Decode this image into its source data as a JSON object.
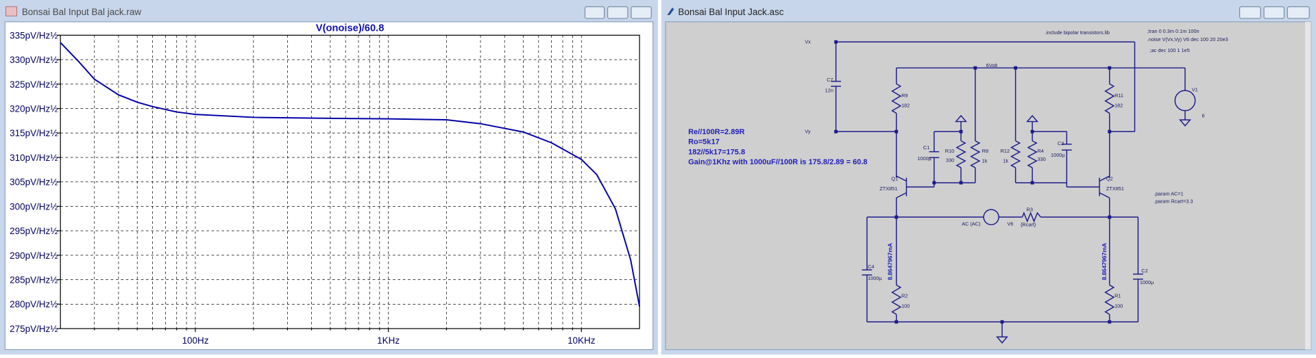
{
  "windows": [
    {
      "title": "Bonsai Bal Input Bal jack.raw"
    },
    {
      "title": "Bonsai Bal Input Jack.asc"
    }
  ],
  "chart_data": {
    "type": "line",
    "log_x": true,
    "grid": true,
    "x": [
      20,
      25,
      30,
      40,
      50,
      60,
      80,
      100,
      200,
      500,
      1000,
      2000,
      3000,
      5000,
      7000,
      10000,
      12000,
      15000,
      18000,
      20000
    ],
    "series": [
      {
        "name": "V(onoise)/60.8",
        "color": "#0000a8",
        "values": [
          333.5,
          329.5,
          326,
          322.8,
          321.3,
          320.4,
          319.3,
          318.8,
          318.2,
          318.0,
          317.9,
          317.7,
          316.9,
          315.2,
          313,
          309.6,
          306.5,
          299.5,
          289,
          279.5
        ]
      }
    ],
    "xlim": [
      20,
      20000
    ],
    "xticks": [
      {
        "value": 100,
        "label": "100Hz"
      },
      {
        "value": 1000,
        "label": "1KHz"
      },
      {
        "value": 10000,
        "label": "10KHz"
      }
    ],
    "xticks_minor": [
      30,
      40,
      50,
      60,
      70,
      80,
      90,
      200,
      300,
      400,
      500,
      600,
      700,
      800,
      900,
      2000,
      3000,
      4000,
      5000,
      6000,
      7000,
      8000,
      9000
    ],
    "ylim": [
      275,
      335
    ],
    "yticks": [
      {
        "value": 275,
        "label": "275pV/Hz½"
      },
      {
        "value": 280,
        "label": "280pV/Hz½"
      },
      {
        "value": 285,
        "label": "285pV/Hz½"
      },
      {
        "value": 290,
        "label": "290pV/Hz½"
      },
      {
        "value": 295,
        "label": "295pV/Hz½"
      },
      {
        "value": 300,
        "label": "300pV/Hz½"
      },
      {
        "value": 305,
        "label": "305pV/Hz½"
      },
      {
        "value": 310,
        "label": "310pV/Hz½"
      },
      {
        "value": 315,
        "label": "315pV/Hz½"
      },
      {
        "value": 320,
        "label": "320pV/Hz½"
      },
      {
        "value": 325,
        "label": "325pV/Hz½"
      },
      {
        "value": 330,
        "label": "330pV/Hz½"
      },
      {
        "value": 335,
        "label": "335pV/Hz½"
      }
    ]
  },
  "schematic": {
    "nets": [
      "Vx",
      "Vy",
      "6Volt"
    ],
    "components": [
      {
        "name": "C7",
        "value": "12n"
      },
      {
        "name": "R9",
        "value": "182"
      },
      {
        "name": "R11",
        "value": "182"
      },
      {
        "name": "V1",
        "value": "6"
      },
      {
        "name": "C1",
        "value": "1000µ"
      },
      {
        "name": "R10",
        "value": "330"
      },
      {
        "name": "R8",
        "value": "1k"
      },
      {
        "name": "R12",
        "value": "1k"
      },
      {
        "name": "R4",
        "value": "330"
      },
      {
        "name": "C3",
        "value": "1000µ"
      },
      {
        "name": "Q1",
        "value": "ZTX851"
      },
      {
        "name": "Q2",
        "value": "ZTX851"
      },
      {
        "name": "V6",
        "value": "AC (AC)"
      },
      {
        "name": "R3",
        "value": "{Rcart}"
      },
      {
        "name": "C4",
        "value": "1000µ"
      },
      {
        "name": "C2",
        "value": "1000µ"
      },
      {
        "name": "R2",
        "value": "100"
      },
      {
        "name": "R1",
        "value": "100"
      }
    ],
    "notes": [
      "Re//100R=2.89R",
      "Ro=5k17",
      "182//5k17=175.8",
      "Gain@1Khz  with 1000uF//100R is 175.8/2.89 = 60.8"
    ],
    "directives": [
      ".include bipolar transistors.lib",
      ";tran 0 0.3m 0.1m 100n",
      ".noise V(Vx,Vy) V6 dec 100 20 20e3",
      ";ac dec 100 1 1e5",
      ".param AC=1",
      ".param Rcart=3.3"
    ],
    "currents": [
      "8.8647967mA",
      "8.8647967mA"
    ]
  }
}
